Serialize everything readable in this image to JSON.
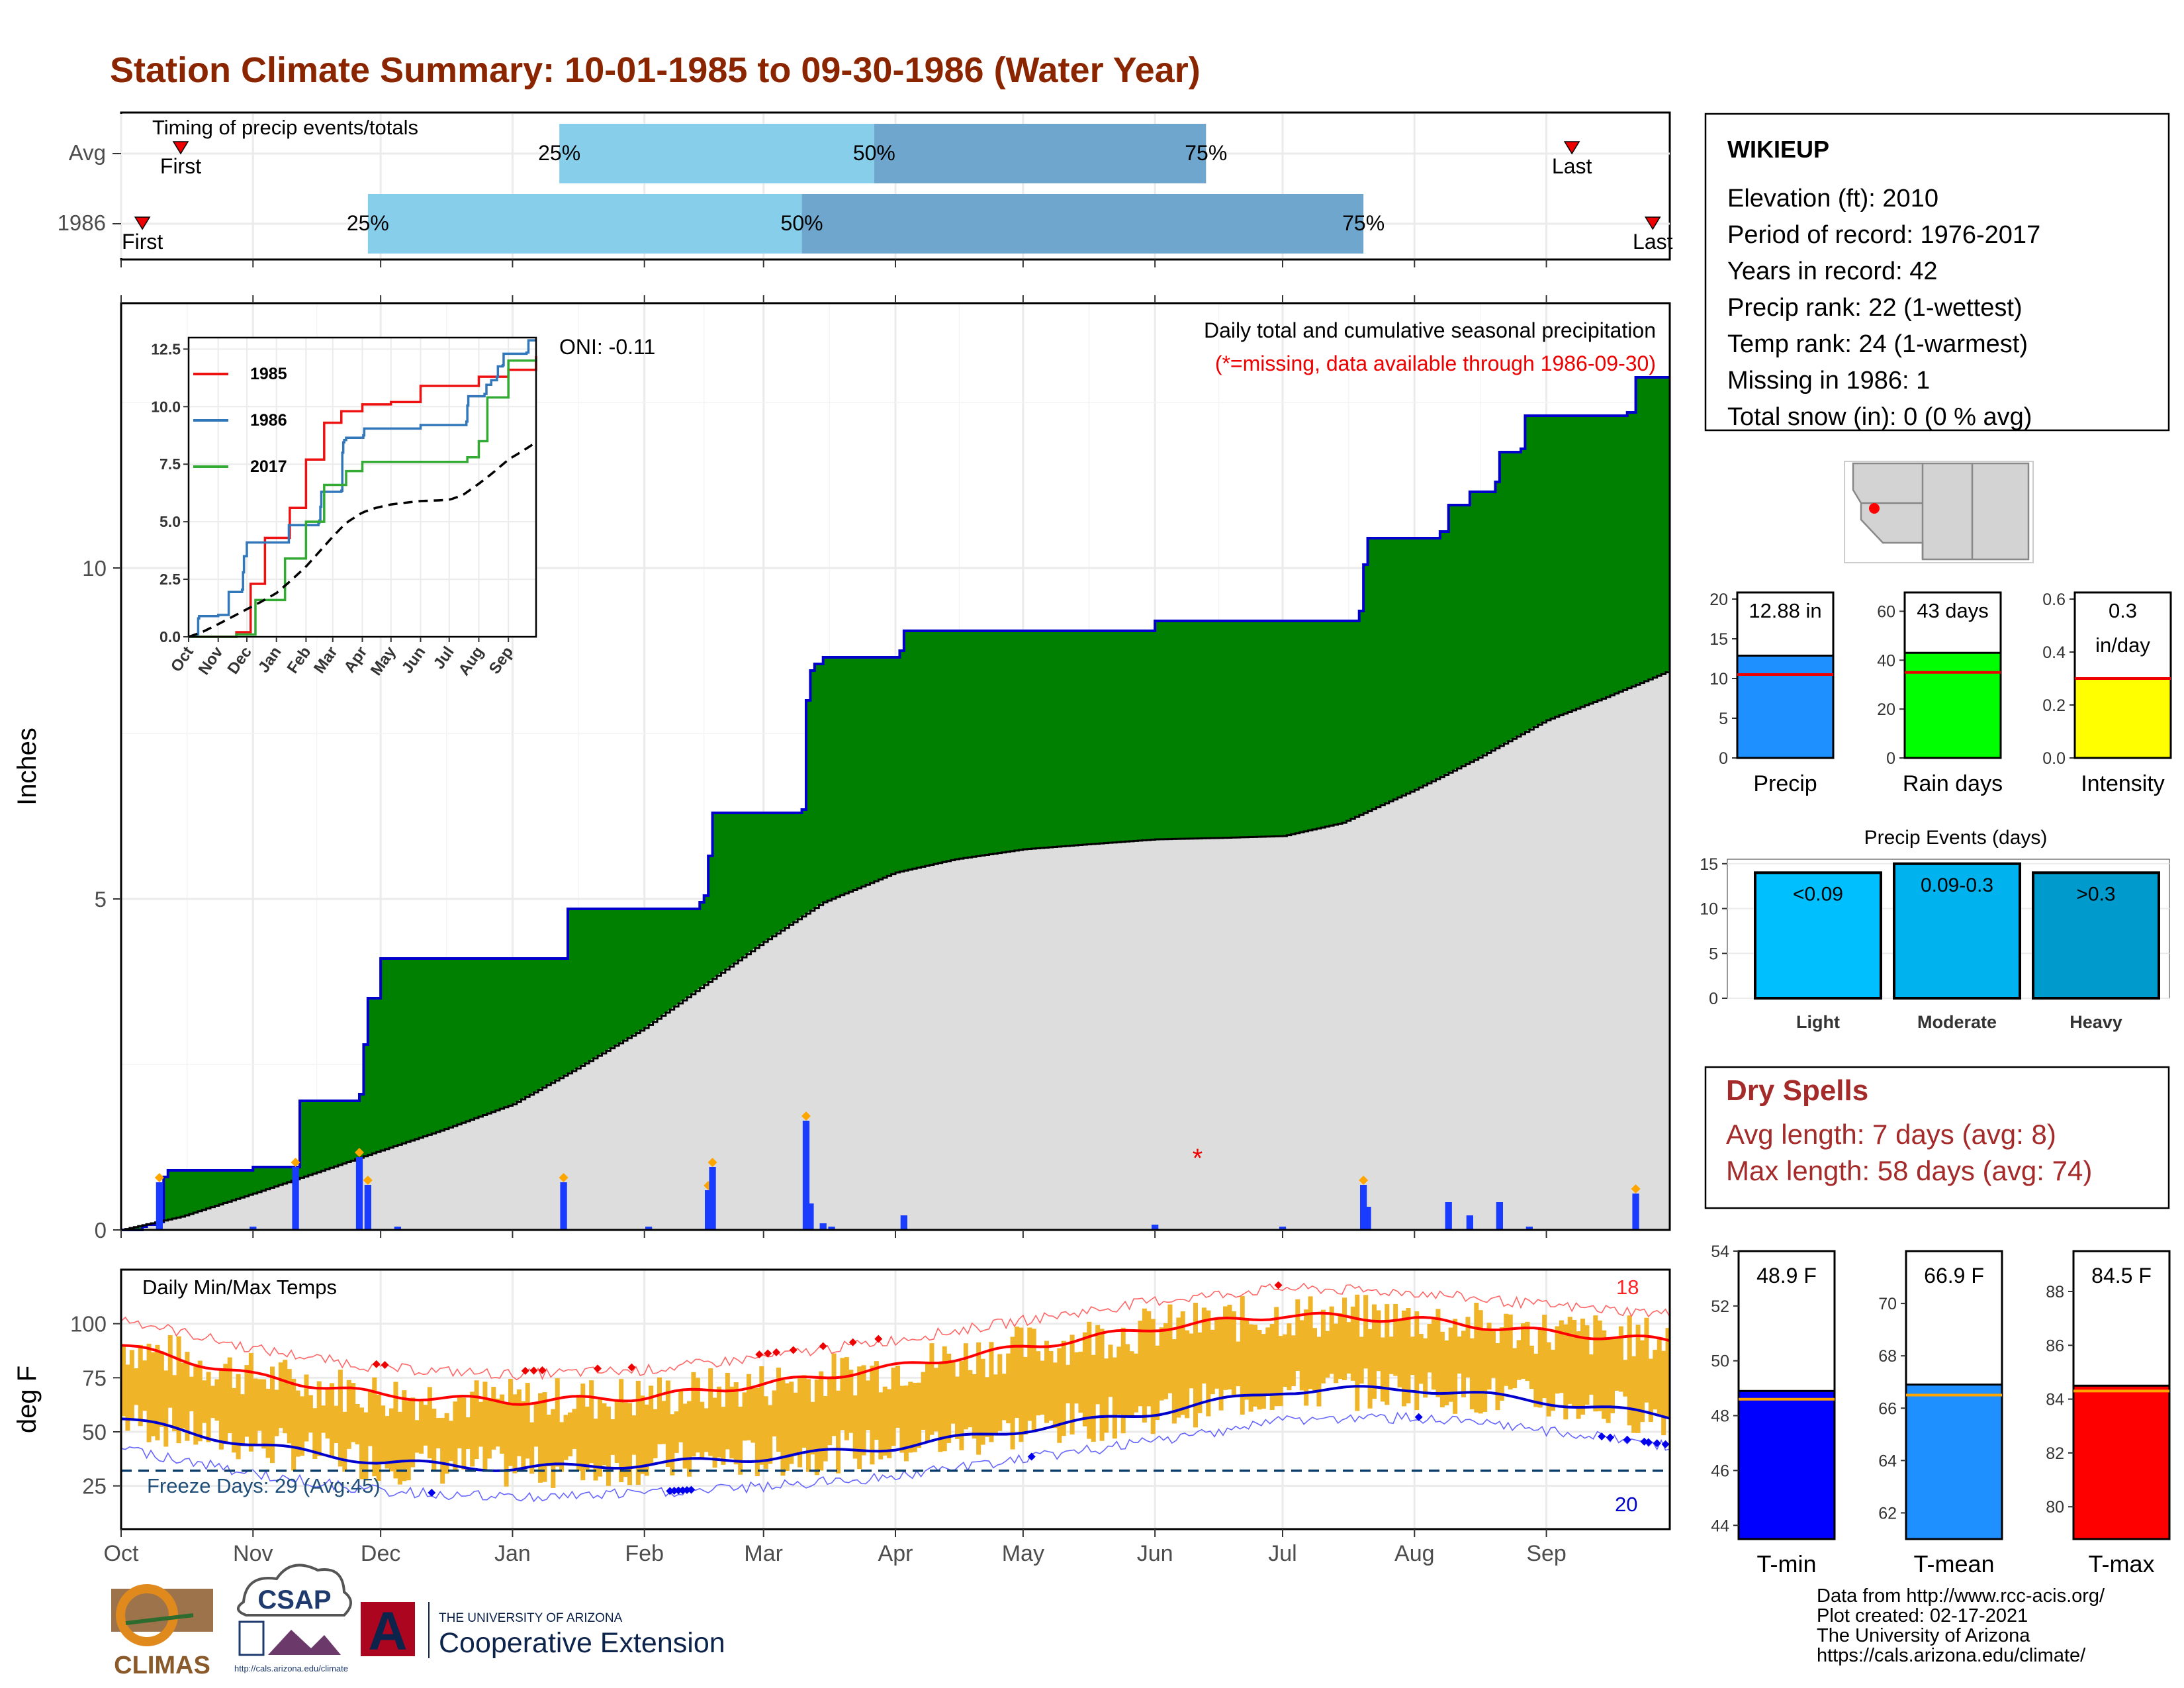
{
  "title": "Station Climate Summary: 10-01-1985 to 09-30-1986 (Water Year)",
  "colors": {
    "title": "#8b2500",
    "cumulative_fill": "#008000",
    "cumulative_line": "#0000cc",
    "avg_fill": "#dddddd",
    "quartile_light": "#87ceeb",
    "quartile_dark": "#6ea6cd",
    "temp_bar": "#f0b428",
    "tmax_line": "#ff0000",
    "tmin_line": "#0000cc",
    "precip_bar": "#1e90ff",
    "raindays_bar": "#00ff00",
    "intensity_bar": "#ffff00",
    "light_bar": "#00bfff",
    "moderate_bar": "#00b2ee",
    "heavy_bar": "#009acd",
    "dry_spell_text": "#a52a2a"
  },
  "timing": {
    "title": "Timing of precip events/totals",
    "rows": [
      {
        "label": "Avg",
        "first_label": "First",
        "last_label": "Last",
        "first": "1985-10-15",
        "q25": "1986-01-12",
        "q50": "1986-03-27",
        "q75": "1986-06-13",
        "last": "1986-09-07",
        "q25_label": "25%",
        "q50_label": "50%",
        "q75_label": "75%"
      },
      {
        "label": "1986",
        "first_label": "First",
        "last_label": "Last",
        "first": "1985-10-06",
        "q25": "1985-11-28",
        "q50": "1986-03-10",
        "q75": "1986-07-20",
        "last": "1986-09-26",
        "q25_label": "25%",
        "q50_label": "50%",
        "q75_label": "75%"
      }
    ]
  },
  "precip_panel": {
    "title": "Daily total and cumulative seasonal precipitation",
    "note": "(*=missing, data available through 1986-09-30)",
    "oni": "ONI: -0.11",
    "ylabel": "Inches",
    "yticks": [
      "0",
      "5",
      "10"
    ],
    "ylim": [
      0,
      14
    ],
    "months": [
      "Oct",
      "Nov",
      "Dec",
      "Jan",
      "Feb",
      "Mar",
      "Apr",
      "May",
      "Jun",
      "Jul",
      "Aug",
      "Sep"
    ]
  },
  "inset": {
    "yticks": [
      "0.0",
      "2.5",
      "5.0",
      "7.5",
      "10.0",
      "12.5"
    ],
    "months": [
      "Oct",
      "Nov",
      "Dec",
      "Jan",
      "Feb",
      "Mar",
      "Apr",
      "May",
      "Jun",
      "Jul",
      "Aug",
      "Sep"
    ],
    "legend": [
      {
        "name": "1985",
        "color": "#ee1111"
      },
      {
        "name": "1986",
        "color": "#3377bb"
      },
      {
        "name": "2017",
        "color": "#33aa33"
      }
    ]
  },
  "temp_panel": {
    "title": "Daily Min/Max Temps",
    "ylabel": "deg F",
    "yticks": [
      "25",
      "50",
      "75",
      "100"
    ],
    "freeze_label": "Freeze Days: 29 (Avg:45)",
    "record_high_count": "18",
    "record_low_count": "20"
  },
  "station": {
    "name": "WIKIEUP",
    "lines": [
      "Elevation (ft): 2010",
      "Period of record: 1976-2017",
      "Years in record: 42",
      "Precip rank: 22 (1-wettest)",
      "Temp rank: 24 (1-warmest)",
      "Missing in 1986: 1",
      "Total snow (in): 0 (0 % avg)"
    ]
  },
  "summary_bars": [
    {
      "label": "Precip",
      "value_label": "12.88 in",
      "value": 12.88,
      "avg": 10.5,
      "ymax": 20,
      "ticks": [
        "0",
        "5",
        "10",
        "15",
        "20"
      ],
      "color": "#1e90ff"
    },
    {
      "label": "Rain days",
      "value_label": "43 days",
      "value": 43,
      "avg": 35,
      "ymax": 65,
      "ticks": [
        "0",
        "20",
        "40",
        "60"
      ],
      "color": "#00ff00"
    },
    {
      "label": "Intensity",
      "value_label": "0.3",
      "value_label2": "in/day",
      "value": 0.3,
      "avg": 0.3,
      "ymax": 0.6,
      "ticks": [
        "0.0",
        "0.2",
        "0.4",
        "0.6"
      ],
      "color": "#ffff00"
    }
  ],
  "precip_events": {
    "title": "Precip Events (days)",
    "ticks": [
      "0",
      "5",
      "10",
      "15"
    ],
    "bars": [
      {
        "label": "Light",
        "bin": "<0.09",
        "value": 14,
        "color": "#00bfff"
      },
      {
        "label": "Moderate",
        "bin": "0.09-0.3",
        "value": 15,
        "color": "#00b2ee"
      },
      {
        "label": "Heavy",
        "bin": ">0.3",
        "value": 14,
        "color": "#009acd"
      }
    ]
  },
  "dry_spells": {
    "title": "Dry Spells",
    "avg_line": "Avg length: 7 days (avg: 8)",
    "max_line": "Max length: 58 days (avg: 74)"
  },
  "temp_bars": [
    {
      "label": "T-min",
      "value_label": "48.9 F",
      "value": 48.9,
      "avg": 48.6,
      "ylim": [
        43.5,
        54
      ],
      "ticks": [
        "44",
        "46",
        "48",
        "50",
        "52",
        "54"
      ],
      "color": "#0000ff"
    },
    {
      "label": "T-mean",
      "value_label": "66.9 F",
      "value": 66.9,
      "avg": 66.5,
      "ylim": [
        61,
        72
      ],
      "ticks": [
        "62",
        "64",
        "66",
        "68",
        "70"
      ],
      "color": "#1e90ff"
    },
    {
      "label": "T-max",
      "value_label": "84.5 F",
      "value": 84.5,
      "avg": 84.3,
      "ylim": [
        78.8,
        89.5
      ],
      "ticks": [
        "80",
        "82",
        "84",
        "86",
        "88"
      ],
      "color": "#ff0000"
    }
  ],
  "credits": [
    "Data from http://www.rcc-acis.org/",
    "Plot created: 02-17-2021",
    "The University of Arizona",
    "https://cals.arizona.edu/climate/"
  ],
  "logos": {
    "climas": "CLIMAS",
    "csap": "CSAP",
    "csap_url": "http://cals.arizona.edu/climate",
    "ua_small": "THE UNIVERSITY OF ARIZONA",
    "ua_big": "Cooperative Extension",
    "ua_mark": "A"
  },
  "chart_data": [
    {
      "type": "area",
      "title": "Daily total and cumulative seasonal precipitation",
      "ylabel": "Inches",
      "ylim": [
        0,
        14
      ],
      "cumulative_1986": [
        [
          "1985-10-01",
          0
        ],
        [
          "1985-10-06",
          0.05
        ],
        [
          "1985-10-07",
          0.08
        ],
        [
          "1985-10-10",
          0.12
        ],
        [
          "1985-10-11",
          0.8
        ],
        [
          "1985-10-12",
          0.9
        ],
        [
          "1985-11-01",
          0.95
        ],
        [
          "1985-11-10",
          0.95
        ],
        [
          "1985-11-12",
          1.95
        ],
        [
          "1985-11-26",
          2.05
        ],
        [
          "1985-11-27",
          2.8
        ],
        [
          "1985-11-28",
          3.5
        ],
        [
          "1985-12-01",
          4.1
        ],
        [
          "1986-01-13",
          4.1
        ],
        [
          "1986-01-14",
          4.85
        ],
        [
          "1986-02-14",
          4.95
        ],
        [
          "1986-02-15",
          5.05
        ],
        [
          "1986-02-16",
          5.65
        ],
        [
          "1986-02-17",
          6.3
        ],
        [
          "1986-03-10",
          6.35
        ],
        [
          "1986-03-11",
          8.0
        ],
        [
          "1986-03-12",
          8.45
        ],
        [
          "1986-03-13",
          8.55
        ],
        [
          "1986-03-15",
          8.65
        ],
        [
          "1986-04-02",
          8.75
        ],
        [
          "1986-04-03",
          9.05
        ],
        [
          "1986-05-31",
          9.05
        ],
        [
          "1986-06-01",
          9.2
        ],
        [
          "1986-07-19",
          9.35
        ],
        [
          "1986-07-20",
          10.05
        ],
        [
          "1986-07-21",
          10.45
        ],
        [
          "1986-08-07",
          10.55
        ],
        [
          "1986-08-09",
          10.95
        ],
        [
          "1986-08-14",
          11.15
        ],
        [
          "1986-08-20",
          11.3
        ],
        [
          "1986-08-21",
          11.75
        ],
        [
          "1986-08-26",
          11.8
        ],
        [
          "1986-08-27",
          12.3
        ],
        [
          "1986-09-20",
          12.35
        ],
        [
          "1986-09-22",
          12.88
        ],
        [
          "1986-09-30",
          12.88
        ]
      ],
      "cumulative_avg": [
        [
          "1985-10-01",
          0
        ],
        [
          "1985-10-15",
          0.2
        ],
        [
          "1985-11-01",
          0.55
        ],
        [
          "1985-11-15",
          0.85
        ],
        [
          "1985-12-01",
          1.2
        ],
        [
          "1985-12-15",
          1.5
        ],
        [
          "1986-01-01",
          1.9
        ],
        [
          "1986-01-15",
          2.4
        ],
        [
          "1986-02-01",
          3.05
        ],
        [
          "1986-02-15",
          3.7
        ],
        [
          "1986-03-01",
          4.35
        ],
        [
          "1986-03-15",
          4.95
        ],
        [
          "1986-04-01",
          5.4
        ],
        [
          "1986-04-15",
          5.6
        ],
        [
          "1986-05-01",
          5.75
        ],
        [
          "1986-05-15",
          5.82
        ],
        [
          "1986-06-01",
          5.9
        ],
        [
          "1986-06-15",
          5.92
        ],
        [
          "1986-07-01",
          5.95
        ],
        [
          "1986-07-15",
          6.15
        ],
        [
          "1986-08-01",
          6.65
        ],
        [
          "1986-08-15",
          7.1
        ],
        [
          "1986-09-01",
          7.7
        ],
        [
          "1986-09-15",
          8.05
        ],
        [
          "1986-09-30",
          8.45
        ]
      ],
      "daily_precip": [
        [
          "1985-10-10",
          0.72
        ],
        [
          "1985-11-11",
          0.95
        ],
        [
          "1985-11-26",
          1.1
        ],
        [
          "1985-11-28",
          0.68
        ],
        [
          "1986-01-13",
          0.72
        ],
        [
          "1986-02-16",
          0.6
        ],
        [
          "1986-02-17",
          0.95
        ],
        [
          "1986-03-11",
          1.65
        ],
        [
          "1986-03-12",
          0.4
        ],
        [
          "1986-03-15",
          0.1
        ],
        [
          "1986-04-03",
          0.22
        ],
        [
          "1986-06-01",
          0.08
        ],
        [
          "1986-07-20",
          0.68
        ],
        [
          "1986-07-21",
          0.35
        ],
        [
          "1986-08-09",
          0.42
        ],
        [
          "1986-08-14",
          0.22
        ],
        [
          "1986-08-21",
          0.42
        ],
        [
          "1986-09-22",
          0.55
        ]
      ],
      "missing": [
        "1986-06-11"
      ]
    },
    {
      "type": "line",
      "title": "Daily Min/Max Temps",
      "ylabel": "deg F",
      "ylim": [
        5,
        125
      ],
      "freeze_line": 32,
      "avg_tmax": [
        [
          "1985-10-01",
          90
        ],
        [
          "1985-11-01",
          76
        ],
        [
          "1985-12-01",
          67
        ],
        [
          "1986-01-01",
          64
        ],
        [
          "1986-02-01",
          66
        ],
        [
          "1986-03-01",
          72
        ],
        [
          "1986-04-01",
          80
        ],
        [
          "1986-05-01",
          89
        ],
        [
          "1986-06-01",
          98
        ],
        [
          "1986-07-01",
          104
        ],
        [
          "1986-08-01",
          102
        ],
        [
          "1986-09-01",
          96
        ],
        [
          "1986-09-30",
          92
        ]
      ],
      "avg_tmin": [
        [
          "1985-10-01",
          56
        ],
        [
          "1985-11-01",
          44
        ],
        [
          "1985-12-01",
          36
        ],
        [
          "1986-01-01",
          33
        ],
        [
          "1986-02-01",
          35
        ],
        [
          "1986-03-01",
          38
        ],
        [
          "1986-04-01",
          43
        ],
        [
          "1986-05-01",
          51
        ],
        [
          "1986-06-01",
          59
        ],
        [
          "1986-07-01",
          69
        ],
        [
          "1986-08-01",
          70
        ],
        [
          "1986-09-01",
          64
        ],
        [
          "1986-09-30",
          57
        ]
      ]
    },
    {
      "type": "bar",
      "categories": [
        "Light",
        "Moderate",
        "Heavy"
      ],
      "values": [
        14,
        15,
        14
      ],
      "title": "Precip Events (days)"
    },
    {
      "type": "bar",
      "categories": [
        "Precip",
        "Rain days",
        "Intensity"
      ],
      "values": [
        12.88,
        43,
        0.3
      ]
    },
    {
      "type": "bar",
      "categories": [
        "T-min",
        "T-mean",
        "T-max"
      ],
      "values": [
        48.9,
        66.9,
        84.5
      ]
    }
  ]
}
